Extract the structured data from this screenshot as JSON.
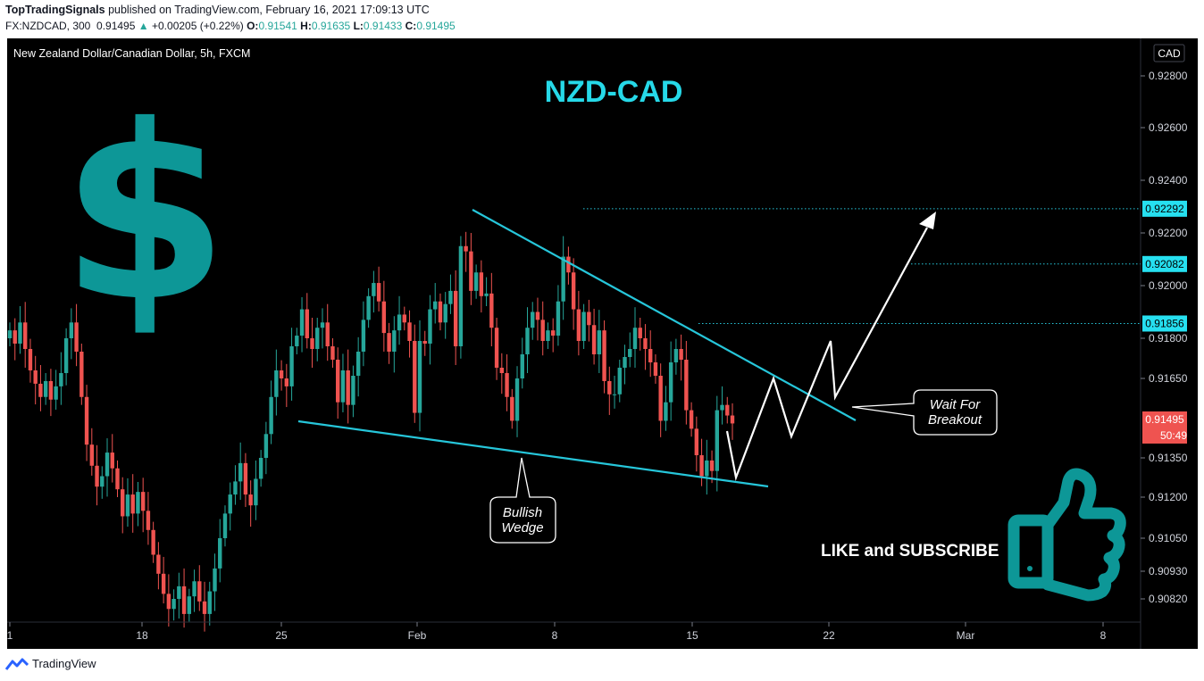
{
  "header": {
    "publisher": "TopTradingSignals",
    "published_text": "published on TradingView.com, February 16, 2021 17:09:13 UTC",
    "symbol": "FX:NZDCAD, 300",
    "last": "0.91495",
    "change_arrow": "▲",
    "change": "+0.00205 (+0.22%)",
    "o_label": "O:",
    "o": "0.91541",
    "h_label": "H:",
    "h": "0.91635",
    "l_label": "L:",
    "l": "0.91433",
    "c_label": "C:",
    "c": "0.91495"
  },
  "footer": {
    "brand": "TradingView",
    "logo_icon": "tradingview-logo-icon"
  },
  "chart_data": {
    "type": "candlestick",
    "instrument": "New Zealand Dollar/Canadian Dollar, 5h, FXCM",
    "title": "NZD-CAD",
    "currency_button": "CAD",
    "y_ticks": [
      "0.92800",
      "0.92600",
      "0.92400",
      "0.92200",
      "0.92000",
      "0.91800",
      "0.91650",
      "0.91350",
      "0.91200",
      "0.91050",
      "0.90930",
      "0.90820"
    ],
    "y_tick_values": [
      0.928,
      0.926,
      0.924,
      0.922,
      0.92,
      0.918,
      0.9165,
      0.9135,
      0.912,
      0.9105,
      0.9093,
      0.9082
    ],
    "x_ticks": [
      "1",
      "18",
      "25",
      "Feb",
      "8",
      "15",
      "22",
      "Mar",
      "8"
    ],
    "price_labels": [
      {
        "text": "0.92292",
        "value": 0.92292
      },
      {
        "text": "0.92082",
        "value": 0.92082
      },
      {
        "text": "0.91856",
        "value": 0.91856
      }
    ],
    "last_price": {
      "text": "0.91495",
      "value": 0.91495,
      "countdown": "50:49"
    },
    "series_colors": {
      "up": "#26a69a",
      "down": "#ef5350"
    },
    "candles_close": [
      0.9183,
      0.9178,
      0.9186,
      0.9176,
      0.9168,
      0.9163,
      0.9158,
      0.9164,
      0.9157,
      0.9162,
      0.9167,
      0.918,
      0.9186,
      0.9175,
      0.9158,
      0.914,
      0.9132,
      0.9124,
      0.9128,
      0.9137,
      0.9131,
      0.9123,
      0.9113,
      0.9121,
      0.9114,
      0.9122,
      0.9115,
      0.9108,
      0.9099,
      0.9092,
      0.9084,
      0.9078,
      0.9082,
      0.9087,
      0.9076,
      0.9083,
      0.9089,
      0.9081,
      0.9076,
      0.9085,
      0.9094,
      0.9105,
      0.9114,
      0.9121,
      0.9126,
      0.9133,
      0.9121,
      0.9117,
      0.9127,
      0.9135,
      0.9144,
      0.9158,
      0.9168,
      0.9165,
      0.9162,
      0.9177,
      0.9181,
      0.9191,
      0.918,
      0.9176,
      0.9184,
      0.9186,
      0.9177,
      0.9172,
      0.9156,
      0.9168,
      0.9155,
      0.9166,
      0.9175,
      0.9187,
      0.9196,
      0.9201,
      0.9194,
      0.9182,
      0.9175,
      0.9183,
      0.9189,
      0.9186,
      0.9179,
      0.9152,
      0.9179,
      0.9178,
      0.9191,
      0.9194,
      0.9186,
      0.9193,
      0.9198,
      0.9177,
      0.9215,
      0.9213,
      0.9198,
      0.9205,
      0.9196,
      0.9197,
      0.9184,
      0.9169,
      0.9167,
      0.9158,
      0.9149,
      0.9165,
      0.9174,
      0.9184,
      0.919,
      0.9187,
      0.9179,
      0.9183,
      0.9181,
      0.9194,
      0.9211,
      0.9205,
      0.9191,
      0.9179,
      0.919,
      0.9185,
      0.9174,
      0.9183,
      0.9164,
      0.9159,
      0.9159,
      0.9169,
      0.9173,
      0.9176,
      0.9184,
      0.918,
      0.9176,
      0.9171,
      0.9166,
      0.9149,
      0.9156,
      0.9171,
      0.9176,
      0.9172,
      0.9153,
      0.9146,
      0.9136,
      0.9128,
      0.9134,
      0.913,
      0.9153,
      0.9155,
      0.9151,
      0.9148
    ],
    "annotations": [
      {
        "text": "Bullish Wedge"
      },
      {
        "text": "Wait For Breakout"
      },
      {
        "text": "LIKE and SUBSCRIBE"
      }
    ],
    "icons": [
      "dollar-sign-icon",
      "thumbs-up-icon"
    ]
  }
}
